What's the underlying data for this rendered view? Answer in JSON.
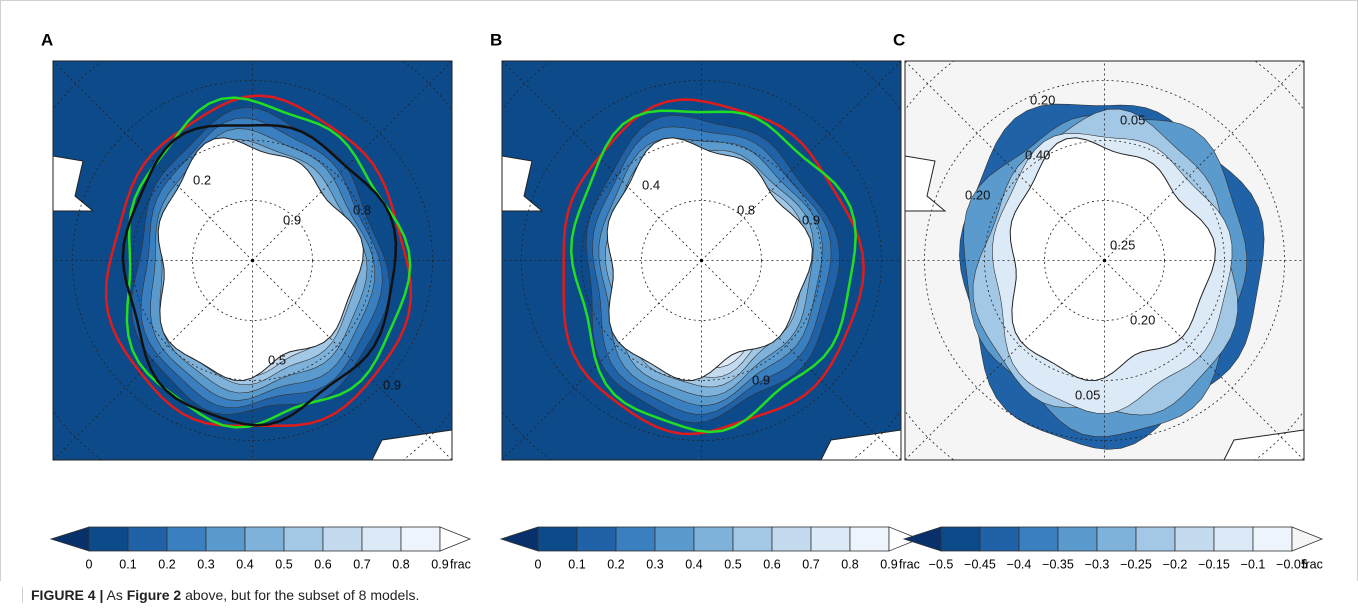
{
  "panels": [
    {
      "label": "A",
      "style": "ice",
      "lines": [
        {
          "color": "#e01b1b"
        },
        {
          "color": "#22dd22"
        },
        {
          "color": "#111111"
        }
      ],
      "contour_labels": [
        "0.2",
        "0.9",
        "0.8",
        "0.5",
        "0.9"
      ]
    },
    {
      "label": "B",
      "style": "ice",
      "lines": [
        {
          "color": "#e01b1b"
        },
        {
          "color": "#22dd22"
        }
      ],
      "contour_labels": [
        "0.4",
        "0.8",
        "0.9",
        "0.9"
      ]
    },
    {
      "label": "C",
      "style": "diff",
      "lines": [],
      "contour_labels": [
        "0.40",
        "0.05",
        "0.20",
        "0.25",
        "0.20",
        "0.20",
        "0.05"
      ]
    }
  ],
  "colorbars": [
    {
      "ticks": [
        "0",
        "0.1",
        "0.2",
        "0.3",
        "0.4",
        "0.5",
        "0.6",
        "0.7",
        "0.8",
        "0.9"
      ],
      "unit": "frac",
      "colors": [
        "#08306b",
        "#0d4a8a",
        "#1f62a8",
        "#3a7fbf",
        "#5a9acd",
        "#7fb2db",
        "#a3c8e6",
        "#c3daef",
        "#dce9f6",
        "#eef4fb",
        "#ffffff"
      ]
    },
    {
      "ticks": [
        "0",
        "0.1",
        "0.2",
        "0.3",
        "0.4",
        "0.5",
        "0.6",
        "0.7",
        "0.8",
        "0.9"
      ],
      "unit": "frac",
      "colors": [
        "#08306b",
        "#0d4a8a",
        "#1f62a8",
        "#3a7fbf",
        "#5a9acd",
        "#7fb2db",
        "#a3c8e6",
        "#c3daef",
        "#dce9f6",
        "#eef4fb",
        "#ffffff"
      ]
    },
    {
      "ticks": [
        "−0.5",
        "−0.45",
        "−0.4",
        "−0.35",
        "−0.3",
        "−0.25",
        "−0.2",
        "−0.15",
        "−0.1",
        "−0.05"
      ],
      "unit": "frac",
      "colors": [
        "#08306b",
        "#0d4a8a",
        "#1f62a8",
        "#3a7fbf",
        "#5a9acd",
        "#7fb2db",
        "#a3c8e6",
        "#c3daef",
        "#dce9f6",
        "#eef4fb",
        "#f5f5f5"
      ]
    }
  ],
  "caption": {
    "label": "FIGURE 4 |",
    "lead": "As",
    "ref": "Figure 2",
    "rest": "above, but for the subset of 8 models."
  }
}
